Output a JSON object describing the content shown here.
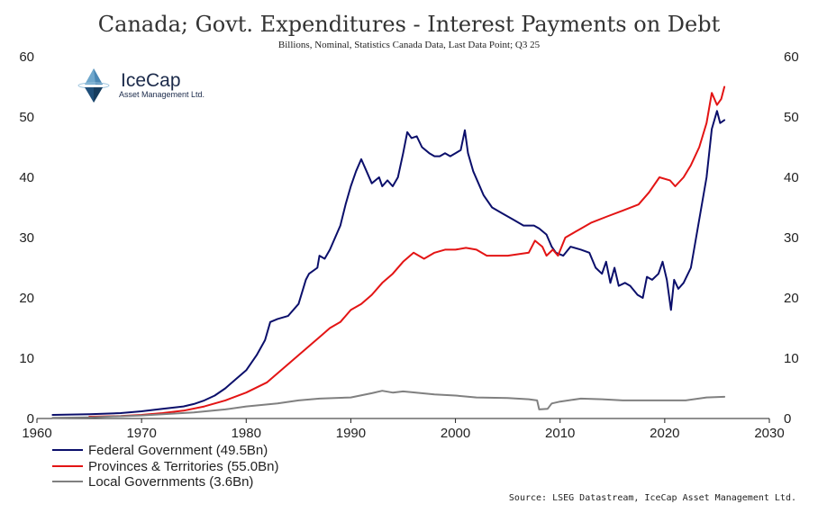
{
  "chart_data": {
    "type": "line",
    "title": "Canada; Govt. Expenditures - Interest Payments on Debt",
    "subtitle": "Billions, Nominal, Statistics Canada Data, Last Data Point; Q3 25",
    "source": "Source: LSEG Datastream, IceCap Asset Management Ltd.",
    "xlim": [
      1960,
      2030
    ],
    "ylim": [
      0,
      60
    ],
    "x_ticks": [
      1960,
      1970,
      1980,
      1990,
      2000,
      2010,
      2020,
      2030
    ],
    "y_ticks": [
      0,
      10,
      20,
      30,
      40,
      50,
      60
    ],
    "grid": false,
    "legend_position": "bottom-left",
    "series": [
      {
        "name": "Federal Government (49.5Bn)",
        "color": "#0b0f6b",
        "points": [
          [
            1961.5,
            0.6
          ],
          [
            1965,
            0.7
          ],
          [
            1968,
            0.9
          ],
          [
            1970,
            1.2
          ],
          [
            1972,
            1.6
          ],
          [
            1974,
            2.0
          ],
          [
            1975,
            2.4
          ],
          [
            1976,
            3.0
          ],
          [
            1977,
            3.8
          ],
          [
            1978,
            5.0
          ],
          [
            1979,
            6.5
          ],
          [
            1980,
            8.0
          ],
          [
            1981,
            10.5
          ],
          [
            1981.8,
            13.0
          ],
          [
            1982.3,
            16.0
          ],
          [
            1983,
            16.5
          ],
          [
            1984,
            17.0
          ],
          [
            1985,
            19.0
          ],
          [
            1985.7,
            23.0
          ],
          [
            1986,
            24.0
          ],
          [
            1986.8,
            25.0
          ],
          [
            1987,
            27.0
          ],
          [
            1987.5,
            26.5
          ],
          [
            1988,
            28.0
          ],
          [
            1989,
            32.0
          ],
          [
            1989.5,
            35.5
          ],
          [
            1990,
            38.5
          ],
          [
            1990.5,
            41.0
          ],
          [
            1991,
            43.0
          ],
          [
            1991.5,
            41.0
          ],
          [
            1992,
            39.0
          ],
          [
            1992.7,
            40.0
          ],
          [
            1993,
            38.5
          ],
          [
            1993.5,
            39.5
          ],
          [
            1994,
            38.5
          ],
          [
            1994.5,
            40.0
          ],
          [
            1995,
            44.0
          ],
          [
            1995.4,
            47.5
          ],
          [
            1995.8,
            46.5
          ],
          [
            1996.3,
            46.8
          ],
          [
            1996.8,
            45.0
          ],
          [
            1997.5,
            44.0
          ],
          [
            1998,
            43.5
          ],
          [
            1998.5,
            43.5
          ],
          [
            1999,
            44.0
          ],
          [
            1999.5,
            43.5
          ],
          [
            2000,
            44.0
          ],
          [
            2000.5,
            44.5
          ],
          [
            2000.9,
            47.8
          ],
          [
            2001.2,
            44.0
          ],
          [
            2001.7,
            41.0
          ],
          [
            2002.2,
            39.0
          ],
          [
            2002.7,
            37.0
          ],
          [
            2003.5,
            35.0
          ],
          [
            2004.5,
            34.0
          ],
          [
            2005.5,
            33.0
          ],
          [
            2006.5,
            32.0
          ],
          [
            2007.5,
            32.0
          ],
          [
            2008,
            31.5
          ],
          [
            2008.7,
            30.5
          ],
          [
            2009.2,
            28.5
          ],
          [
            2009.6,
            27.5
          ],
          [
            2010.3,
            27.0
          ],
          [
            2011,
            28.5
          ],
          [
            2012,
            28.0
          ],
          [
            2012.8,
            27.5
          ],
          [
            2013.4,
            25.0
          ],
          [
            2014,
            24.0
          ],
          [
            2014.4,
            26.0
          ],
          [
            2014.8,
            22.5
          ],
          [
            2015.2,
            25.0
          ],
          [
            2015.6,
            22.0
          ],
          [
            2016.2,
            22.5
          ],
          [
            2016.7,
            22.0
          ],
          [
            2017.4,
            20.5
          ],
          [
            2017.9,
            20.0
          ],
          [
            2018.3,
            23.5
          ],
          [
            2018.8,
            23.0
          ],
          [
            2019.4,
            24.0
          ],
          [
            2019.8,
            26.0
          ],
          [
            2020.2,
            23.0
          ],
          [
            2020.6,
            18.0
          ],
          [
            2020.9,
            23.0
          ],
          [
            2021.3,
            21.5
          ],
          [
            2021.8,
            22.5
          ],
          [
            2022.5,
            25.0
          ],
          [
            2023,
            30.0
          ],
          [
            2023.5,
            35.0
          ],
          [
            2024,
            40.0
          ],
          [
            2024.5,
            48.0
          ],
          [
            2025,
            51.0
          ],
          [
            2025.3,
            49.0
          ],
          [
            2025.7,
            49.5
          ]
        ]
      },
      {
        "name": "Provinces & Territories (55.0Bn)",
        "color": "#e31414",
        "points": [
          [
            1965,
            0.3
          ],
          [
            1968,
            0.4
          ],
          [
            1970,
            0.6
          ],
          [
            1972,
            0.9
          ],
          [
            1974,
            1.3
          ],
          [
            1976,
            2.0
          ],
          [
            1978,
            3.0
          ],
          [
            1980,
            4.3
          ],
          [
            1982,
            6.0
          ],
          [
            1983,
            7.5
          ],
          [
            1984,
            9.0
          ],
          [
            1985,
            10.5
          ],
          [
            1986,
            12.0
          ],
          [
            1987,
            13.5
          ],
          [
            1988,
            15.0
          ],
          [
            1989,
            16.0
          ],
          [
            1990,
            18.0
          ],
          [
            1991,
            19.0
          ],
          [
            1992,
            20.5
          ],
          [
            1993,
            22.5
          ],
          [
            1994,
            24.0
          ],
          [
            1995,
            26.0
          ],
          [
            1996,
            27.5
          ],
          [
            1997,
            26.5
          ],
          [
            1998,
            27.5
          ],
          [
            1999,
            28.0
          ],
          [
            2000,
            28.0
          ],
          [
            2001,
            28.3
          ],
          [
            2002,
            28.0
          ],
          [
            2003,
            27.0
          ],
          [
            2005,
            27.0
          ],
          [
            2007,
            27.5
          ],
          [
            2007.6,
            29.5
          ],
          [
            2008.3,
            28.5
          ],
          [
            2008.7,
            27.0
          ],
          [
            2009.3,
            28.0
          ],
          [
            2009.8,
            27.0
          ],
          [
            2010.5,
            30.0
          ],
          [
            2011.5,
            31.0
          ],
          [
            2013,
            32.5
          ],
          [
            2014.5,
            33.5
          ],
          [
            2016,
            34.5
          ],
          [
            2017.5,
            35.5
          ],
          [
            2018.5,
            37.5
          ],
          [
            2019.5,
            40.0
          ],
          [
            2020.5,
            39.5
          ],
          [
            2021,
            38.5
          ],
          [
            2021.8,
            40.0
          ],
          [
            2022.5,
            42.0
          ],
          [
            2023.3,
            45.0
          ],
          [
            2024,
            49.0
          ],
          [
            2024.5,
            54.0
          ],
          [
            2025,
            52.0
          ],
          [
            2025.4,
            53.0
          ],
          [
            2025.7,
            55.0
          ]
        ]
      },
      {
        "name": "Local Governments (3.6Bn)",
        "color": "#808080",
        "points": [
          [
            1961.5,
            0.1
          ],
          [
            1965,
            0.2
          ],
          [
            1970,
            0.5
          ],
          [
            1975,
            1.0
          ],
          [
            1978,
            1.5
          ],
          [
            1980,
            2.0
          ],
          [
            1983,
            2.5
          ],
          [
            1985,
            3.0
          ],
          [
            1987,
            3.3
          ],
          [
            1990,
            3.5
          ],
          [
            1992,
            4.2
          ],
          [
            1993,
            4.6
          ],
          [
            1994,
            4.3
          ],
          [
            1995,
            4.5
          ],
          [
            1998,
            4.0
          ],
          [
            2000,
            3.8
          ],
          [
            2002,
            3.5
          ],
          [
            2005,
            3.4
          ],
          [
            2007,
            3.2
          ],
          [
            2007.8,
            3.0
          ],
          [
            2008,
            1.5
          ],
          [
            2008.8,
            1.6
          ],
          [
            2009.2,
            2.5
          ],
          [
            2010,
            2.8
          ],
          [
            2012,
            3.3
          ],
          [
            2014,
            3.2
          ],
          [
            2016,
            3.0
          ],
          [
            2018,
            3.0
          ],
          [
            2020,
            3.0
          ],
          [
            2022,
            3.0
          ],
          [
            2024,
            3.5
          ],
          [
            2025.7,
            3.6
          ]
        ]
      }
    ]
  },
  "logo": {
    "name": "IceCap",
    "subtitle": "Asset Management Ltd."
  }
}
